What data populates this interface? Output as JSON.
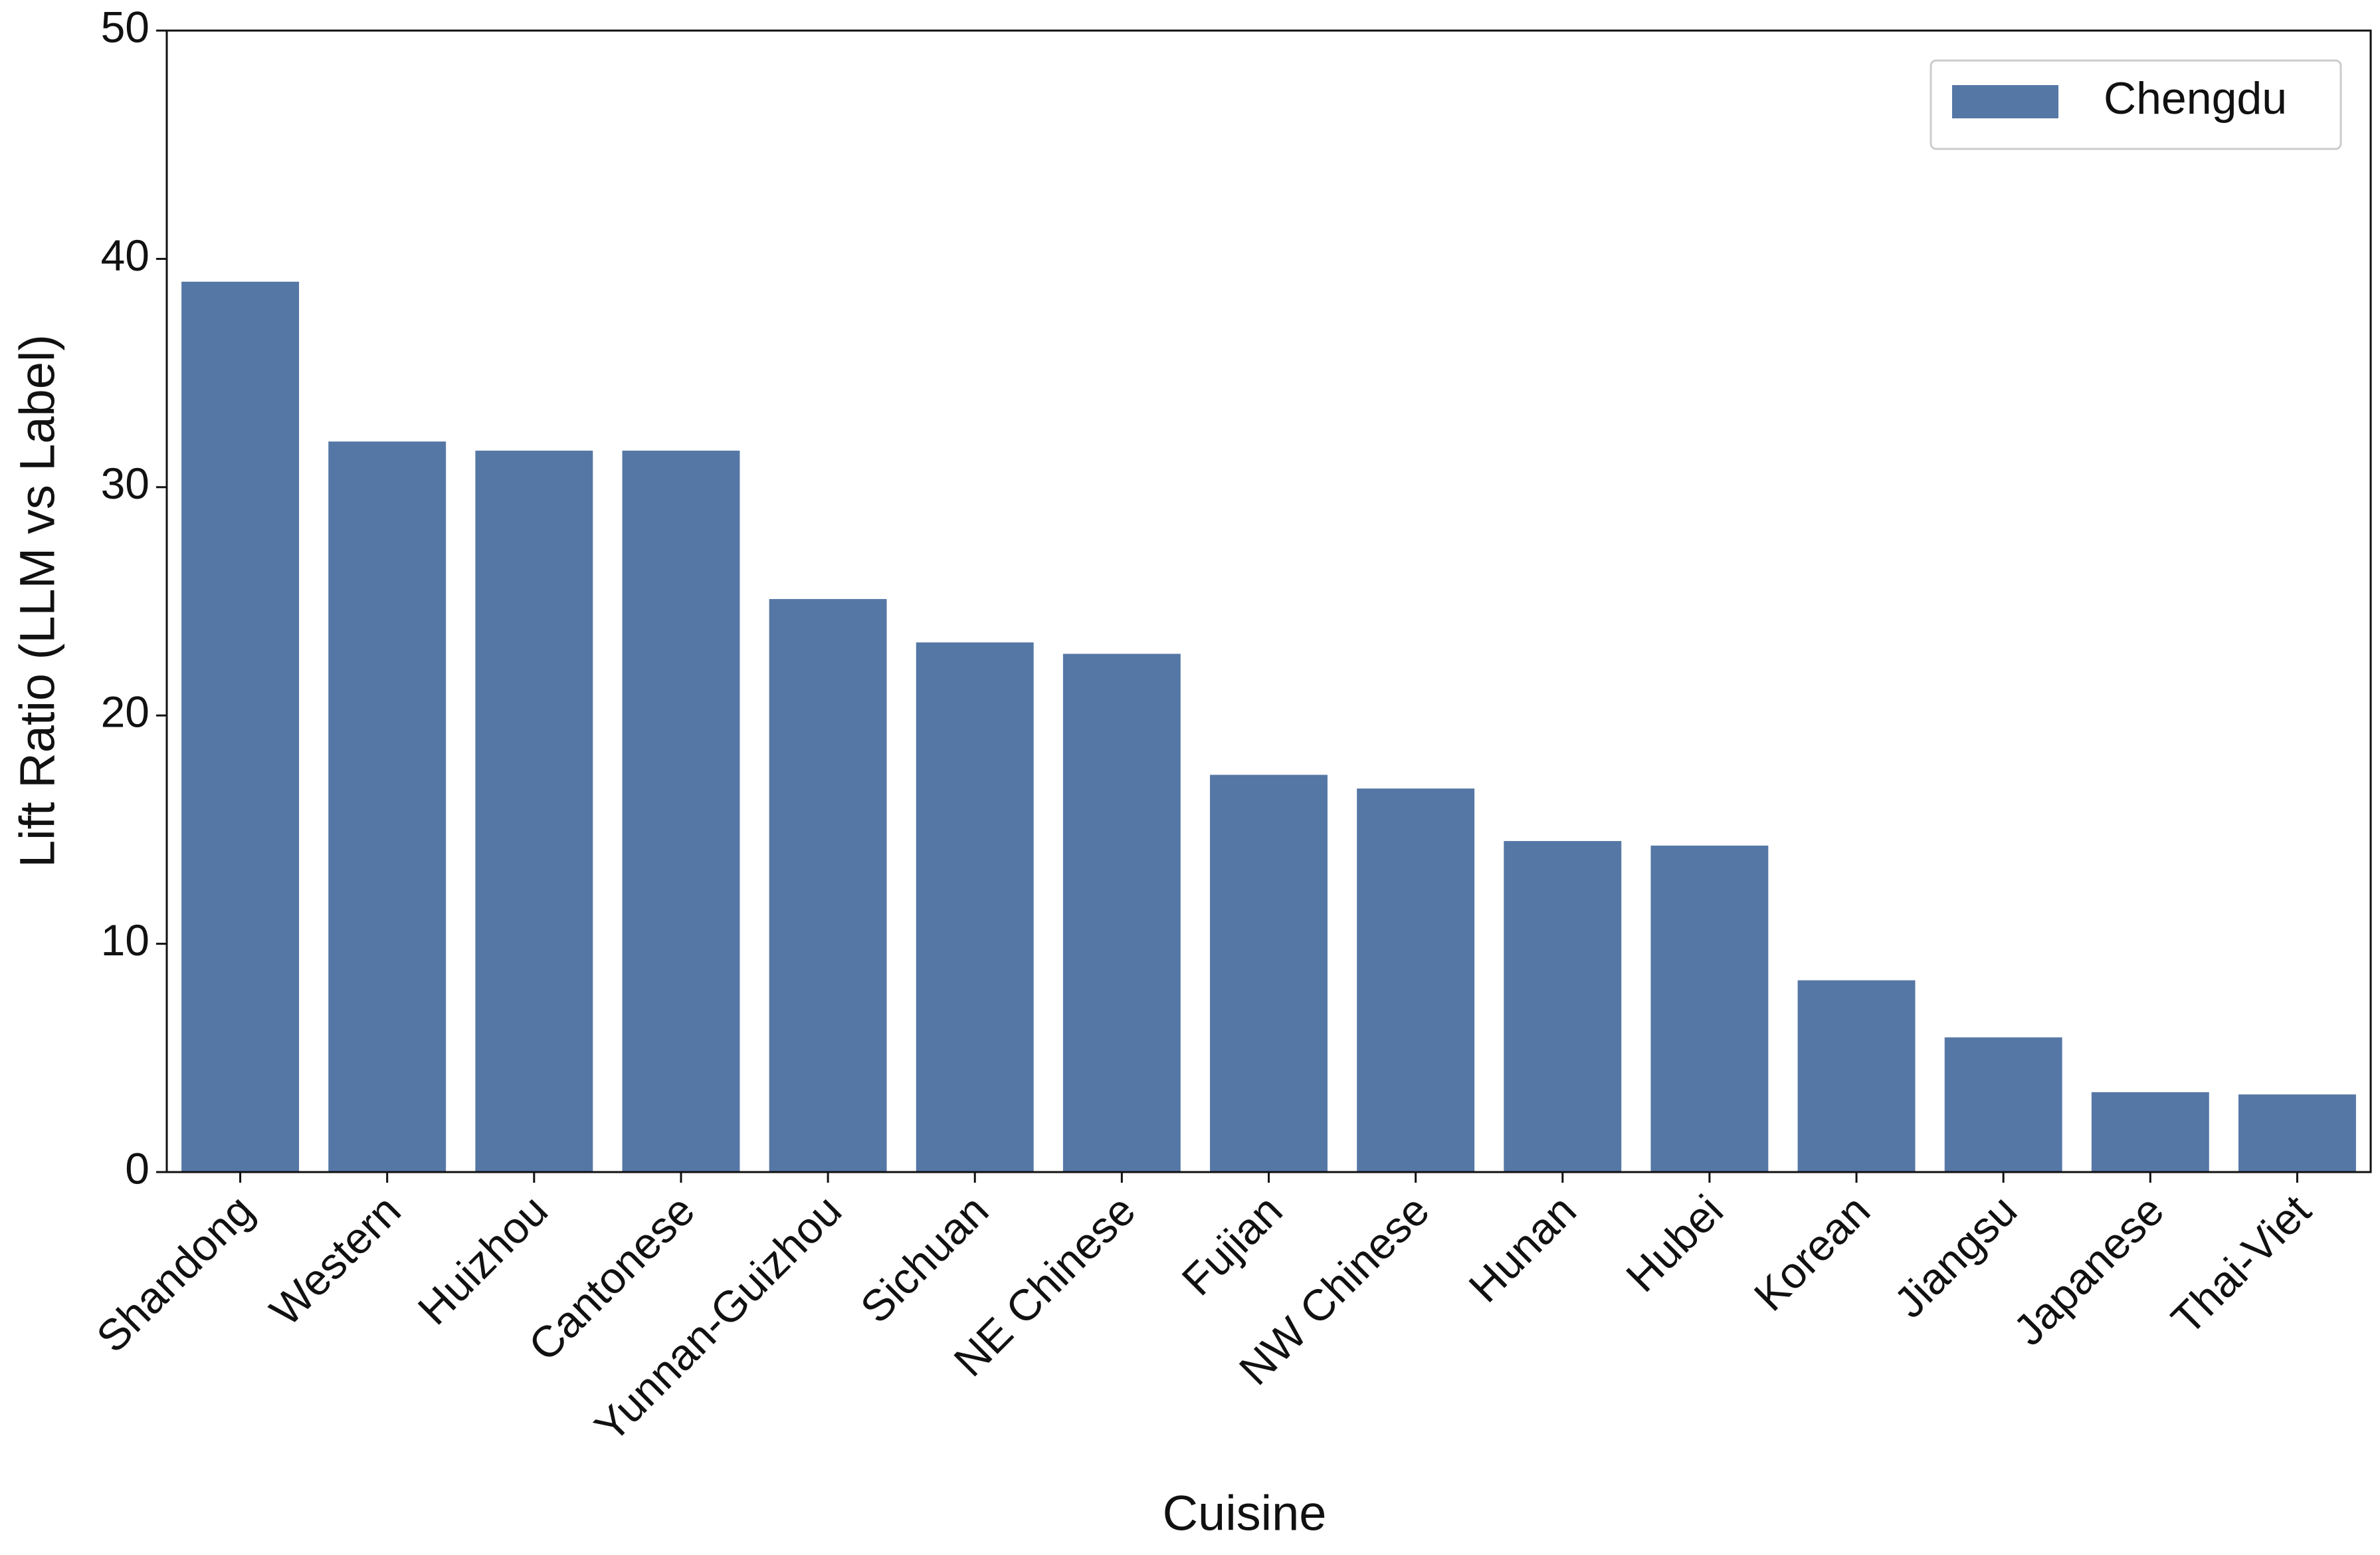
{
  "chart_data": {
    "type": "bar",
    "x_label": "Cuisine",
    "y_label": "Lift Ratio (LLM vs Label)",
    "categories": [
      "Shandong",
      "Western",
      "Huizhou",
      "Cantonese",
      "Yunnan-Guizhou",
      "Sichuan",
      "NE Chinese",
      "Fujian",
      "NW Chinese",
      "Hunan",
      "Hubei",
      "Korean",
      "Jiangsu",
      "Japanese",
      "Thai-Viet"
    ],
    "series": [
      {
        "name": "Chengdu",
        "color": "#5577a5",
        "values": [
          39.0,
          32.0,
          31.6,
          31.6,
          25.1,
          23.2,
          22.7,
          17.4,
          16.8,
          14.5,
          14.3,
          8.4,
          5.9,
          3.5,
          3.4
        ]
      }
    ],
    "ylim": [
      0,
      50
    ],
    "yticks": [
      0,
      10,
      20,
      30,
      40,
      50
    ],
    "grid": false,
    "legend_position": "upper right"
  }
}
